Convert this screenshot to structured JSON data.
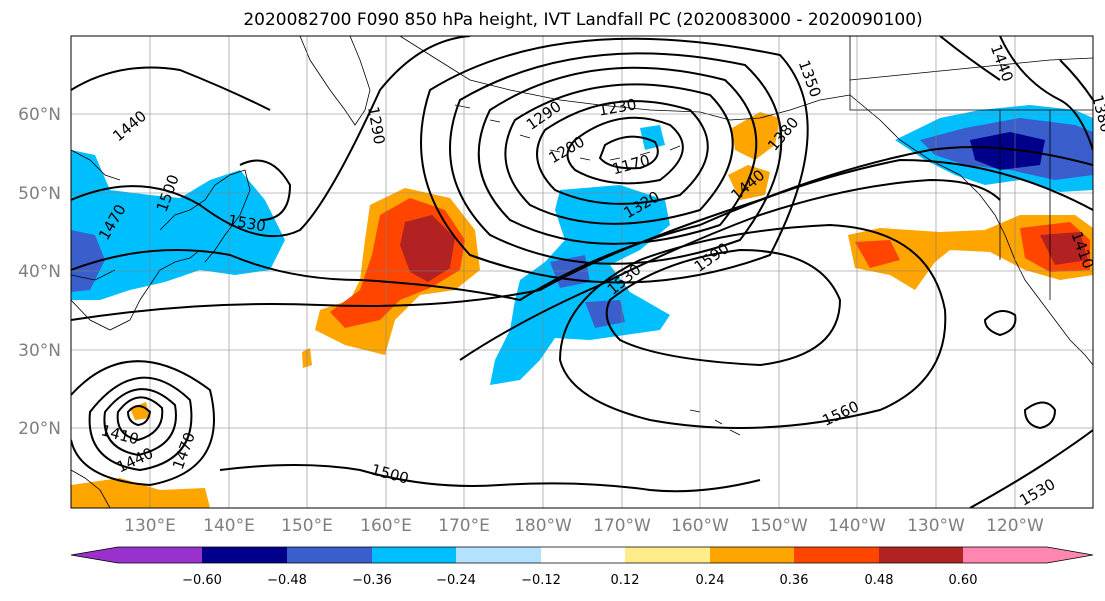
{
  "title": "2020082700 F090 850 hPa height, IVT Landfall PC (2020083000 - 2020090100)",
  "map": {
    "lon_range": [
      120,
      250
    ],
    "lat_range": [
      10,
      70
    ],
    "lat_labels": [
      "20°N",
      "30°N",
      "40°N",
      "50°N",
      "60°N"
    ],
    "lon_labels": [
      "130°E",
      "140°E",
      "150°E",
      "160°E",
      "170°E",
      "180°W",
      "170°W",
      "160°W",
      "150°W",
      "140°W",
      "130°W",
      "120°W"
    ],
    "gridlines": true,
    "contour_labels": [
      "1440",
      "1500",
      "1470",
      "1530",
      "1290",
      "1230",
      "1200",
      "1170",
      "1320",
      "1350",
      "1380",
      "1440",
      "1530",
      "1590",
      "1560",
      "1500",
      "1410",
      "1440",
      "1470",
      "1530",
      "1410",
      "1440",
      "1380",
      "1290"
    ]
  },
  "colorbar": {
    "tick_labels": [
      "−0.60",
      "−0.48",
      "−0.36",
      "−0.24",
      "−0.12",
      "0.12",
      "0.24",
      "0.36",
      "0.48",
      "0.60"
    ],
    "colors": [
      "#9932cc",
      "#00008b",
      "#3a5fcd",
      "#00bfff",
      "#b2e2ff",
      "#ffffff",
      "#ffec8b",
      "#ffa500",
      "#ff4500",
      "#b22222",
      "#ff86b0"
    ]
  }
}
